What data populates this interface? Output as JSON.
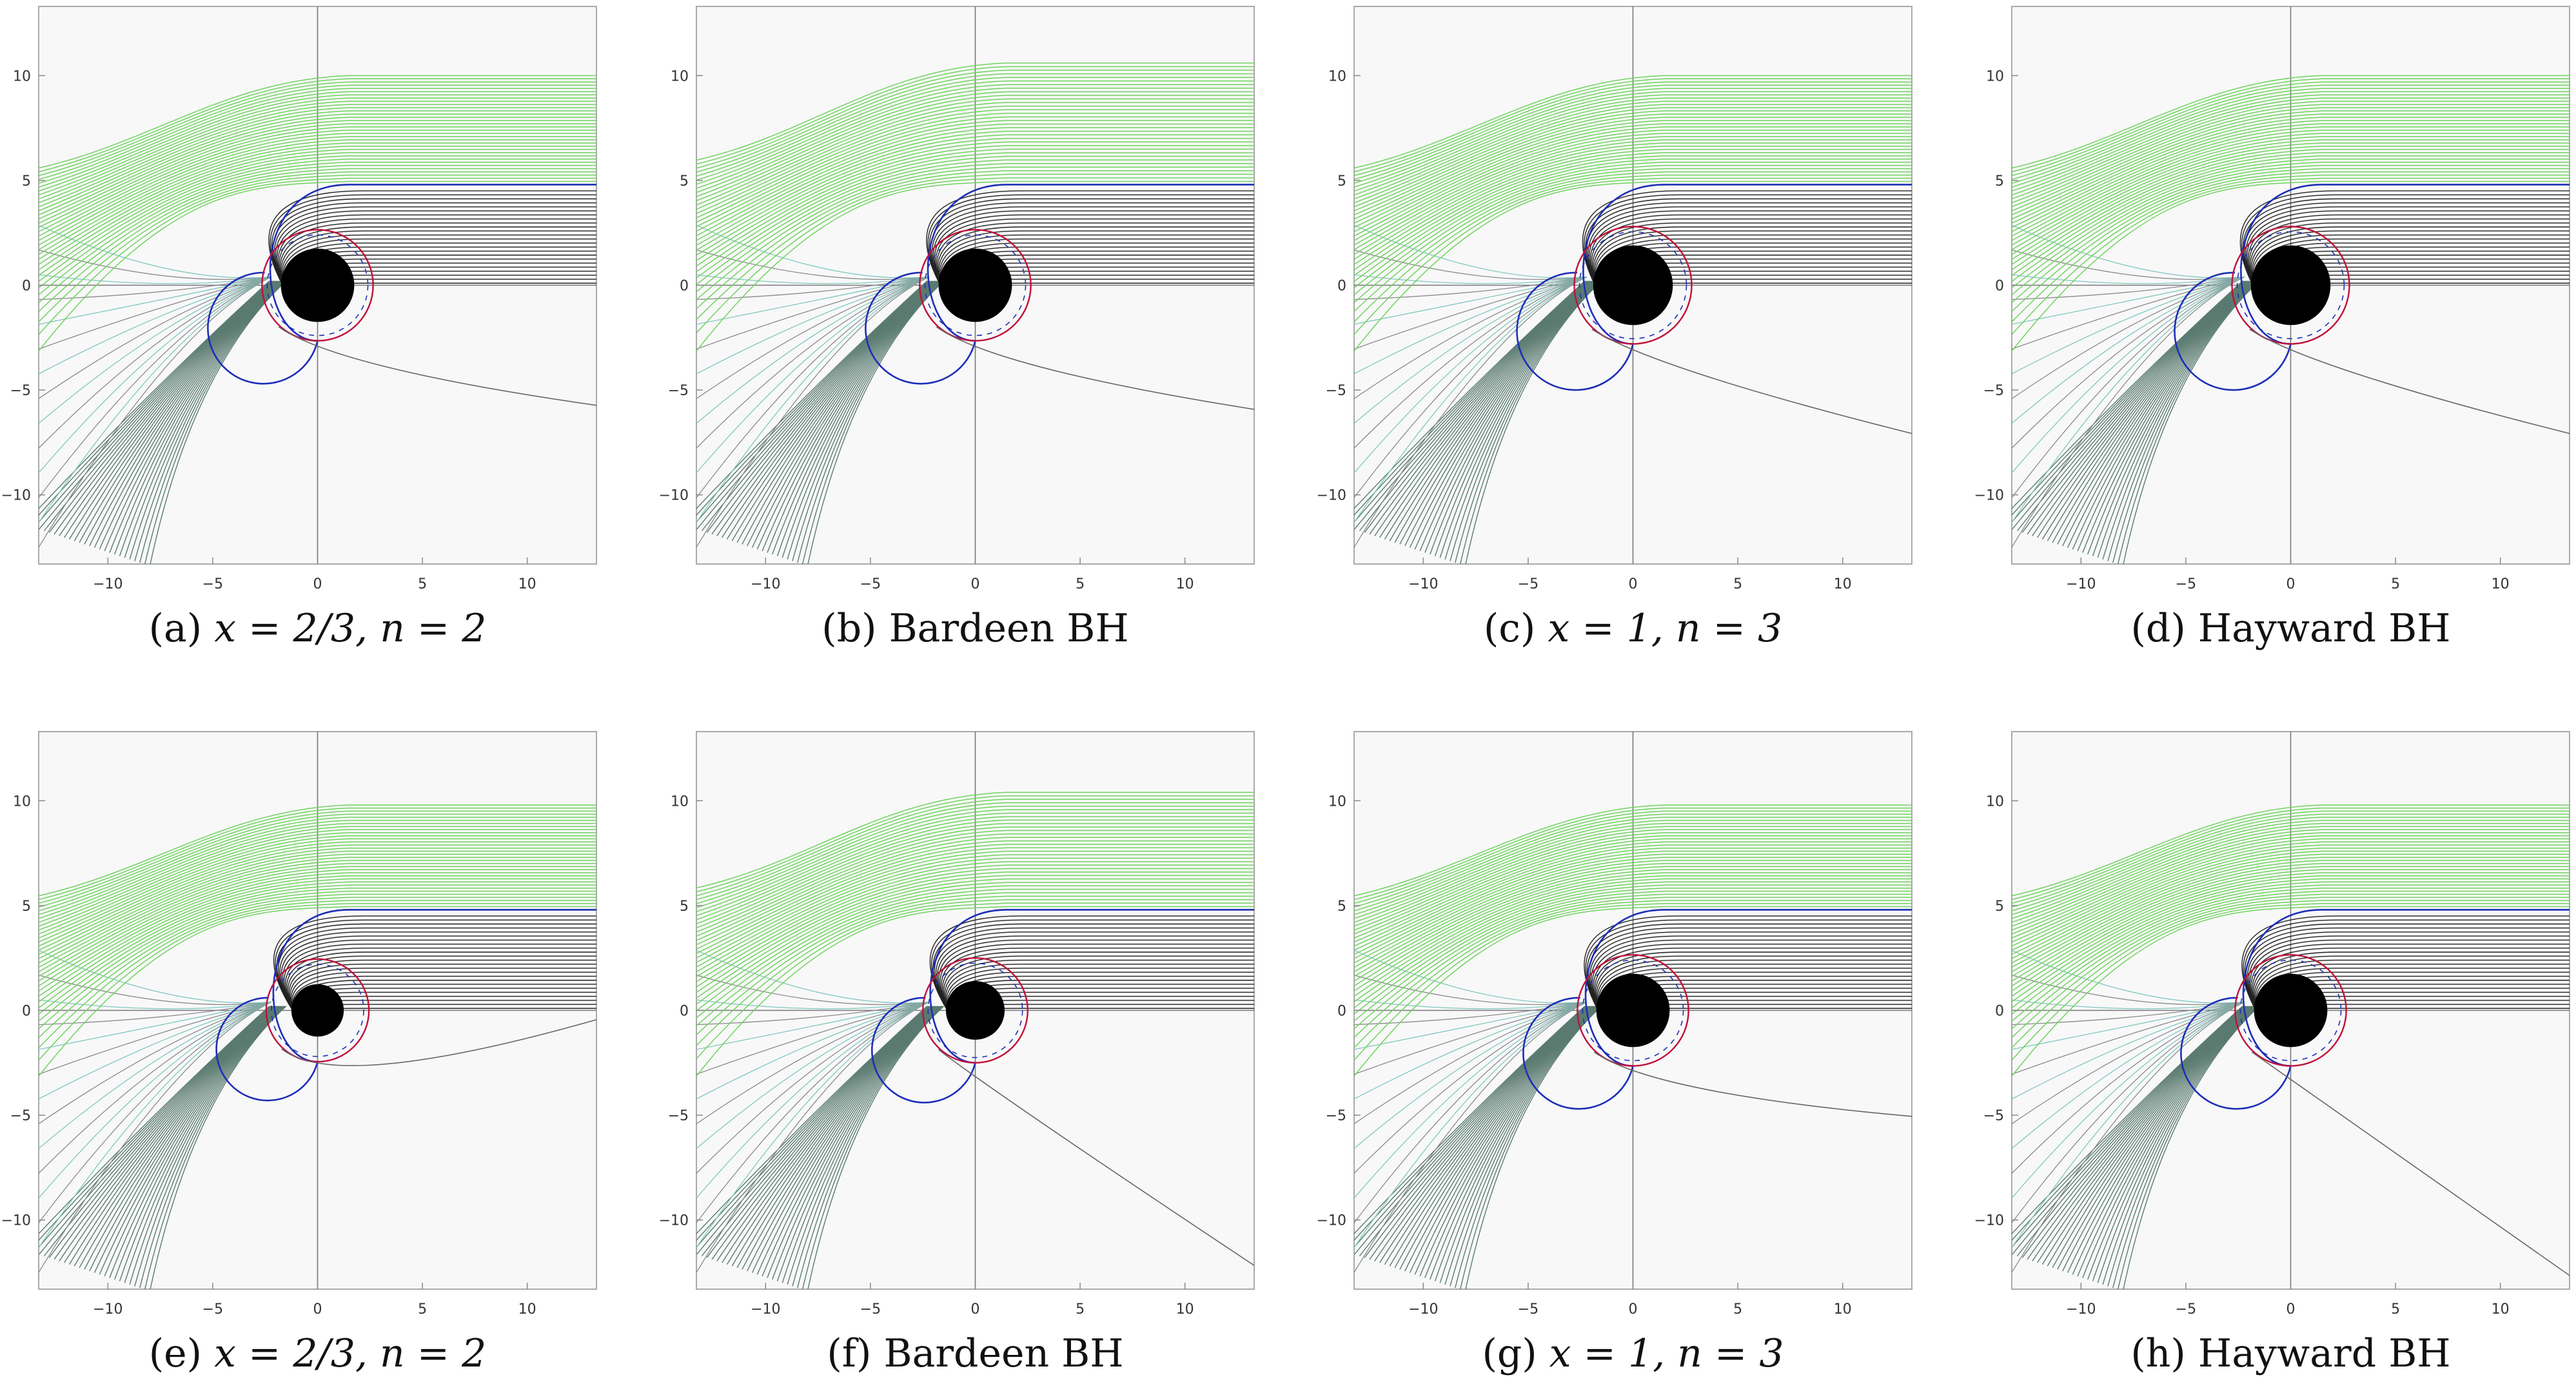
{
  "figure": {
    "axes": {
      "x_ticks": [
        -10,
        -5,
        0,
        5,
        10
      ],
      "y_ticks": [
        10,
        5,
        0,
        -5,
        -10
      ],
      "xlim": [
        -13.3,
        13.3
      ],
      "ylim": [
        -13.3,
        13.3
      ]
    },
    "colors": {
      "background": "#f8f8f8",
      "frame": "#aaaaaa",
      "captured": "#222222",
      "escaping": "#6fd35f",
      "escaping_lower": "#5a7a70",
      "photon_ring": "#c0103a",
      "separatrix": "#1d2fb8",
      "horizon": "#000000"
    },
    "panels": [
      {
        "id": "a",
        "label": "(a)",
        "text": "x = 2/3, n = 2",
        "horizon": 1.75,
        "ring": 2.65,
        "ymax_green": 10.0,
        "tail": -5.8
      },
      {
        "id": "b",
        "label": "(b)",
        "text": "Bardeen BH",
        "horizon": 1.75,
        "ring": 2.65,
        "ymax_green": 10.6,
        "tail": -6.0
      },
      {
        "id": "c",
        "label": "(c)",
        "text": "x = 1, n = 3",
        "horizon": 1.9,
        "ring": 2.8,
        "ymax_green": 10.0,
        "tail": -7.2
      },
      {
        "id": "d",
        "label": "(d)",
        "text": "Hayward BH",
        "horizon": 1.9,
        "ring": 2.8,
        "ymax_green": 10.0,
        "tail": -7.2
      },
      {
        "id": "e",
        "label": "(e)",
        "text": "x = 2/3, n = 2",
        "horizon": 1.25,
        "ring": 2.45,
        "ymax_green": 9.8,
        "tail": -0.3
      },
      {
        "id": "f",
        "label": "(f)",
        "text": "Bardeen BH",
        "horizon": 1.4,
        "ring": 2.5,
        "ymax_green": 10.4,
        "tail": -12.5
      },
      {
        "id": "g",
        "label": "(g)",
        "text": "x = 1, n = 3",
        "horizon": 1.75,
        "ring": 2.65,
        "ymax_green": 9.8,
        "tail": -5.1
      },
      {
        "id": "h",
        "label": "(h)",
        "text": "Hayward BH",
        "horizon": 1.75,
        "ring": 2.65,
        "ymax_green": 9.8,
        "tail": -13.0
      }
    ]
  }
}
